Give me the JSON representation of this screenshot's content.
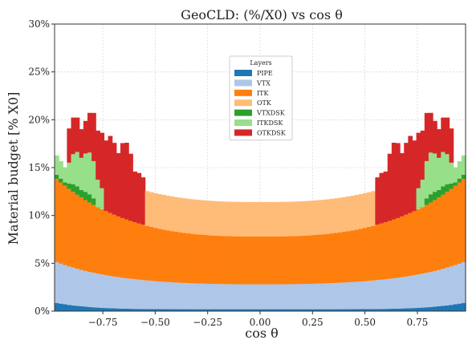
{
  "chart_data": {
    "type": "area",
    "title": "GeoCLD: (%/X0) vs cos θ",
    "xlabel": "cos θ",
    "ylabel": "Material budget [% X0]",
    "xlim": [
      -0.98,
      0.98
    ],
    "ylim": [
      0,
      30
    ],
    "xticks": [
      "−0.75",
      "−0.50",
      "−0.25",
      "0.00",
      "0.25",
      "0.50",
      "0.75"
    ],
    "yticks": [
      "0%",
      "5%",
      "10%",
      "15%",
      "20%",
      "25%",
      "30%"
    ],
    "grid": true,
    "legend": {
      "title": "Layers",
      "position": "top-center"
    },
    "stacked": true,
    "series": [
      {
        "name": "PIPE",
        "color": "#1f77b4",
        "profile": {
          "center": 0.2,
          "edge": 0.9,
          "power": 6
        }
      },
      {
        "name": "VTX",
        "color": "#aec7e8",
        "profile": {
          "center": 2.6,
          "edge": 4.3,
          "power": 2.5
        }
      },
      {
        "name": "ITK",
        "color": "#ff7f0e",
        "profile": {
          "center": 5.0,
          "edge": 8.8,
          "power": 2.8
        }
      },
      {
        "name": "OTK",
        "color": "#ffbb78",
        "profile": {
          "center": 3.6,
          "edge": 3.7,
          "power": 2.0,
          "range": [
            -0.55,
            0.55
          ]
        }
      },
      {
        "name": "VTXDSK",
        "color": "#2ca02c",
        "profile": {
          "edge": 1.0,
          "range_abs": [
            0.78,
            0.98
          ]
        }
      },
      {
        "name": "ITKDSK",
        "color": "#98df8a",
        "profile": {
          "edge": 4.5,
          "range_abs": [
            0.75,
            0.98
          ]
        }
      },
      {
        "name": "OTKDSK",
        "color": "#d62728",
        "profile": {
          "edge": 8.5,
          "range_abs": [
            0.55,
            0.92
          ]
        }
      }
    ]
  }
}
